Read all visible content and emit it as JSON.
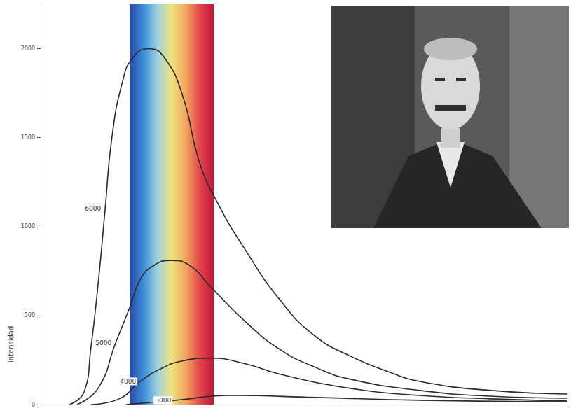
{
  "chart_data": {
    "type": "line",
    "ylabel": "intensidad",
    "xlim": [
      0,
      2000
    ],
    "ylim": [
      0,
      2250
    ],
    "yticks": [
      0,
      500,
      1000,
      1500,
      2000
    ],
    "grid": false,
    "tick_labels": "y",
    "band": {
      "x": [
        338,
        657
      ],
      "colors": [
        "#2a48a8",
        "#3b8fd9",
        "#9fd3df",
        "#efe27e",
        "#f2a65c",
        "#e2474c",
        "#c0183a"
      ]
    },
    "series": [
      {
        "name": "6000",
        "color": "#2b2b2b",
        "x": [
          110,
          165,
          190,
          220,
          245,
          270,
          310,
          350,
          410,
          470,
          540,
          600,
          670,
          780,
          910,
          1040,
          1180,
          1310,
          1440,
          1710,
          2000
        ],
        "values": [
          0,
          71,
          308,
          703,
          1100,
          1494,
          1810,
          1949,
          2000,
          1949,
          1731,
          1375,
          1138,
          862,
          585,
          387,
          269,
          190,
          130,
          79,
          59
        ]
      },
      {
        "name": "5000",
        "color": "#2b2b2b",
        "x": [
          138,
          218,
          285,
          338,
          378,
          431,
          497,
          564,
          644,
          777,
          910,
          1043,
          1176,
          1441,
          1707,
          2000
        ],
        "values": [
          0,
          91,
          348,
          545,
          703,
          783,
          810,
          783,
          664,
          466,
          308,
          209,
          142,
          79,
          47,
          36
        ]
      },
      {
        "name": "4000",
        "color": "#2b2b2b",
        "x": [
          191,
          298,
          378,
          457,
          537,
          644,
          777,
          910,
          1176,
          1441,
          1707,
          2000
        ],
        "values": [
          0,
          32,
          130,
          202,
          245,
          261,
          229,
          170,
          91,
          51,
          32,
          20
        ]
      },
      {
        "name": "3000",
        "color": "#2b2b2b",
        "x": [
          324,
          511,
          723,
          1043,
          1441,
          2000
        ],
        "values": [
          0,
          24,
          51,
          40,
          24,
          16
        ]
      }
    ]
  }
}
